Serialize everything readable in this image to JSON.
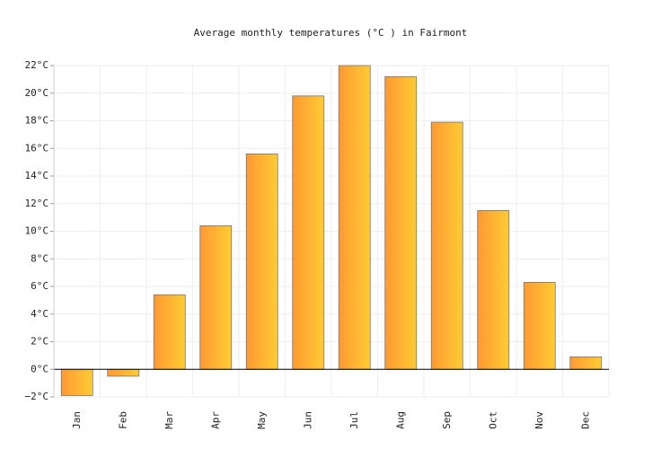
{
  "chart_data": {
    "type": "bar",
    "title": "Average monthly temperatures (°C ) in Fairmont",
    "categories": [
      "Jan",
      "Feb",
      "Mar",
      "Apr",
      "May",
      "Jun",
      "Jul",
      "Aug",
      "Sep",
      "Oct",
      "Nov",
      "Dec"
    ],
    "values": [
      -1.9,
      -0.5,
      5.4,
      10.4,
      15.6,
      19.8,
      22.0,
      21.2,
      17.9,
      11.5,
      6.3,
      0.9
    ],
    "color": [
      "#ff9933",
      "#ffcc33"
    ],
    "ylim": [
      -2,
      22
    ],
    "yticks": [
      {
        "value": -2,
        "label": "−2°C"
      },
      {
        "value": 0,
        "label": "0°C"
      },
      {
        "value": 2,
        "label": "2°C"
      },
      {
        "value": 4,
        "label": "4°C"
      },
      {
        "value": 6,
        "label": "6°C"
      },
      {
        "value": 8,
        "label": "8°C"
      },
      {
        "value": 10,
        "label": "10°C"
      },
      {
        "value": 12,
        "label": "12°C"
      },
      {
        "value": 14,
        "label": "14°C"
      },
      {
        "value": 16,
        "label": "16°C"
      },
      {
        "value": 18,
        "label": "18°C"
      },
      {
        "value": 20,
        "label": "20°C"
      },
      {
        "value": 22,
        "label": "22°C"
      }
    ],
    "grid": true
  }
}
